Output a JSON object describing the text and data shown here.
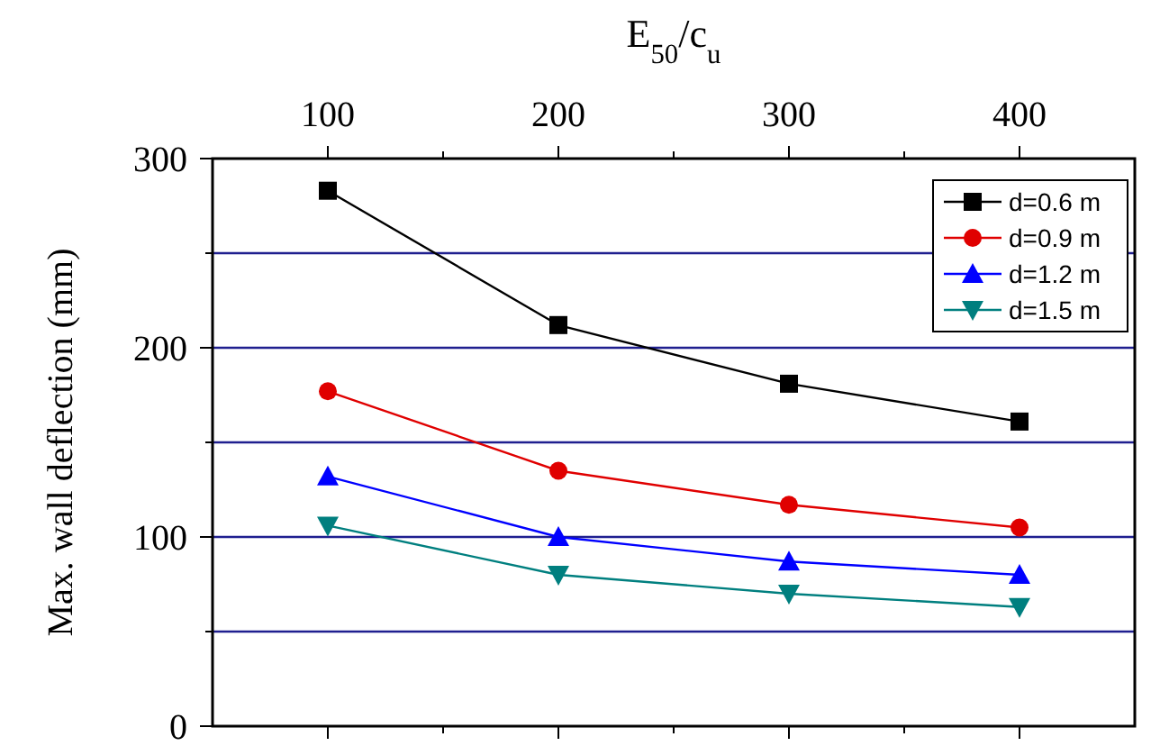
{
  "chart_data": {
    "type": "line",
    "xlabel": "E$_{50}$/c$_{u}$",
    "ylabel": "Max. wall deflection (mm)",
    "x": [
      100,
      200,
      300,
      400
    ],
    "xlim": [
      50,
      450
    ],
    "xticks": [
      100,
      {
        "value": 150,
        "label": null
      },
      200,
      {
        "value": 250,
        "label": null
      },
      300,
      {
        "value": 350,
        "label": null
      },
      400
    ],
    "ylim": [
      0,
      300
    ],
    "yticks": [
      0,
      {
        "value": 50,
        "label": null
      },
      100,
      {
        "value": 150,
        "label": null
      },
      200,
      {
        "value": 250,
        "label": null
      },
      300
    ],
    "grid": "y",
    "legend": "top right",
    "line_style": "solid",
    "series": [
      {
        "name": "d=0.6 m",
        "color": "#000000",
        "marker": "square",
        "values": [
          283,
          212,
          181,
          161
        ]
      },
      {
        "name": "d=0.9 m",
        "color": "#e00000",
        "marker": "circle",
        "values": [
          177,
          135,
          117,
          105
        ]
      },
      {
        "name": "d=1.2 m",
        "color": "#0000ff",
        "marker": "triangle",
        "values": [
          132,
          100,
          87,
          80
        ]
      },
      {
        "name": "d=1.5 m",
        "color": "#007f7f",
        "marker": "triangle-down",
        "values": [
          106,
          80,
          70,
          63
        ]
      }
    ]
  }
}
